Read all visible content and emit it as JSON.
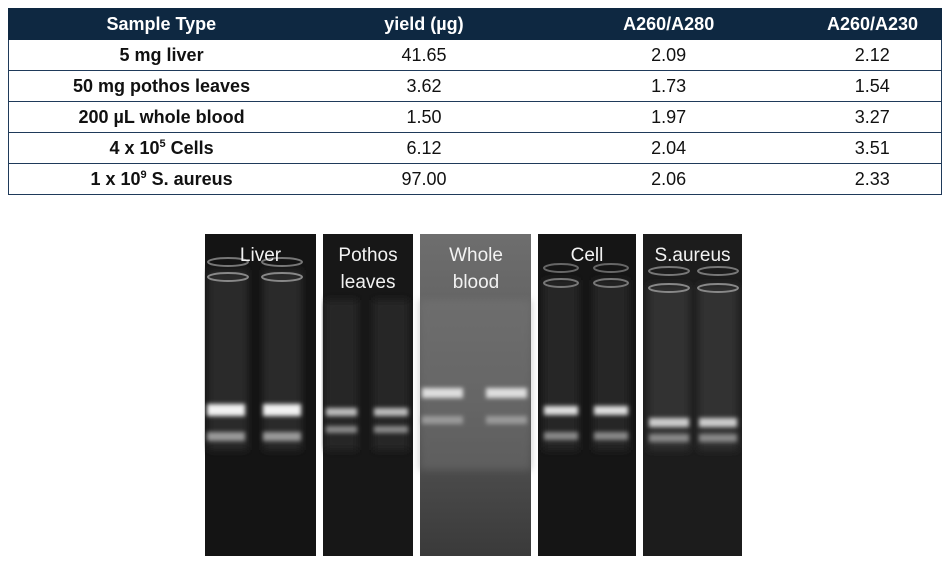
{
  "table": {
    "header": [
      "Sample Type",
      "yield (µg)",
      "A260/A280",
      "A260/A230"
    ],
    "rows": [
      [
        "5 mg liver",
        "41.65",
        "2.09",
        "2.12"
      ],
      [
        "50 mg pothos leaves",
        "3.62",
        "1.73",
        "1.54"
      ],
      [
        "200 µL whole blood",
        "1.50",
        "1.97",
        "3.27"
      ],
      [
        [
          "4 x 10",
          "5",
          " Cells"
        ],
        "6.12",
        "2.04",
        "3.51"
      ],
      [
        [
          "1 x 10",
          "9",
          " S. aureus"
        ],
        "97.00",
        "2.06",
        "2.33"
      ]
    ]
  },
  "gels": {
    "labels": [
      "Liver",
      "Pothos leaves",
      "Whole blood",
      "Cell",
      "S.aureus"
    ]
  }
}
